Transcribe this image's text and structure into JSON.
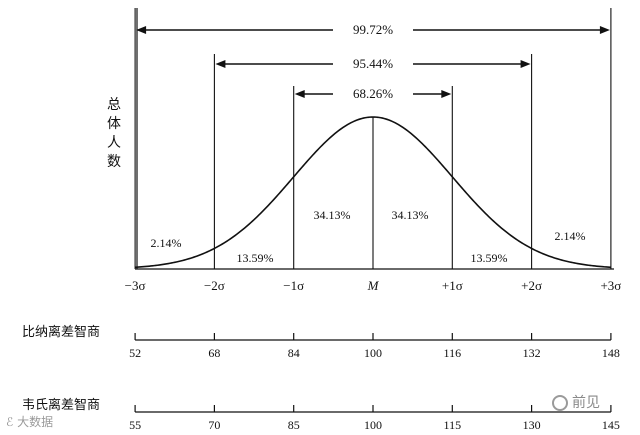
{
  "chart_data": {
    "type": "line",
    "curve": "normal-distribution",
    "ylabel_chars": [
      "总",
      "体",
      "人",
      "数"
    ],
    "sigma_ticks": [
      {
        "pos": -3,
        "label": "−3σ"
      },
      {
        "pos": -2,
        "label": "−2σ"
      },
      {
        "pos": -1,
        "label": "−1σ"
      },
      {
        "pos": 0,
        "label": "M"
      },
      {
        "pos": 1,
        "label": "+1σ"
      },
      {
        "pos": 2,
        "label": "+2σ"
      },
      {
        "pos": 3,
        "label": "+3σ"
      }
    ],
    "region_percentages": [
      {
        "from": -3,
        "to": -2,
        "label": "2.14%"
      },
      {
        "from": -2,
        "to": -1,
        "label": "13.59%"
      },
      {
        "from": -1,
        "to": 0,
        "label": "34.13%"
      },
      {
        "from": 0,
        "to": 1,
        "label": "34.13%"
      },
      {
        "from": 1,
        "to": 2,
        "label": "13.59%"
      },
      {
        "from": 2,
        "to": 3,
        "label": "2.14%"
      }
    ],
    "ranges": [
      {
        "span_sigma": 3,
        "label": "99.72%"
      },
      {
        "span_sigma": 2,
        "label": "95.44%"
      },
      {
        "span_sigma": 1,
        "label": "68.26%"
      }
    ],
    "scales": [
      {
        "title": "比纳离差智商",
        "values": [
          52,
          68,
          84,
          100,
          116,
          132,
          148
        ]
      },
      {
        "title": "韦氏离差智商",
        "values": [
          55,
          70,
          85,
          100,
          115,
          130,
          145
        ]
      }
    ]
  },
  "watermarks": {
    "left": "大数据",
    "right": "前见"
  },
  "colors": {
    "line": "#111111",
    "watermark": "#9a9a9a"
  }
}
